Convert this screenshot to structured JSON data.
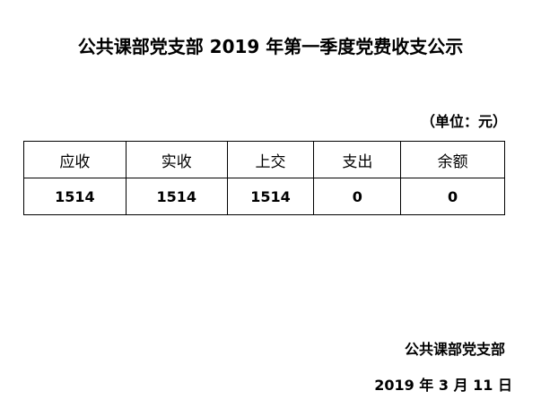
{
  "title": "公共课部党支部 2019 年第一季度党费收支公示",
  "unit": "（单位：元）",
  "table": {
    "headers": [
      "应收",
      "实收",
      "上交",
      "支出",
      "余额"
    ],
    "values": [
      "1514",
      "1514",
      "1514",
      "0",
      "0"
    ]
  },
  "signature": {
    "org": "公共课部党支部",
    "date": "2019 年 3 月 11 日"
  }
}
